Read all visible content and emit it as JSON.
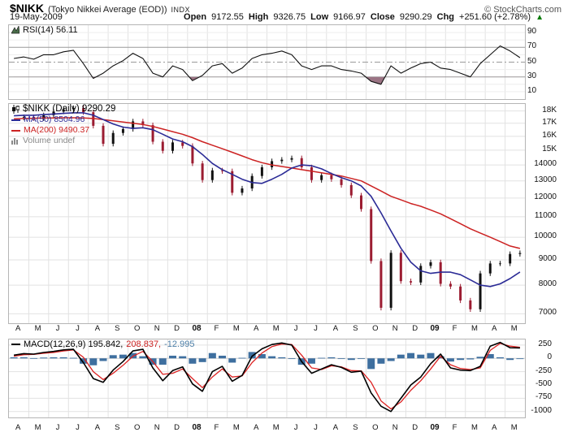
{
  "header": {
    "symbol": "$NIKK",
    "name": "(Tokyo Nikkei Average (EOD))",
    "exchange": "INDX",
    "brand": "© StockCharts.com",
    "date": "19-May-2009",
    "quote": {
      "open_label": "Open",
      "open": "9172.55",
      "high_label": "High",
      "high": "9326.75",
      "low_label": "Low",
      "low": "9166.97",
      "close_label": "Close",
      "close": "9290.29",
      "chg_label": "Chg",
      "chg": "+251.60 (+2.78%)",
      "direction": "▲"
    }
  },
  "rsi_panel": {
    "legend": "RSI(14) 56.11"
  },
  "main_panel": {
    "legend_title": "$NIKK (Daily) 9290.29",
    "legend_ma50": "MA(50) 8504.96",
    "legend_ma200": "MA(200) 9490.37",
    "legend_volume": "Volume undef"
  },
  "macd_panel": {
    "macd_text": "MACD(12,26,9) 195.842,",
    "signal_text": "208.837,",
    "hist_text": "-12.995"
  },
  "months": [
    "A",
    "M",
    "J",
    "J",
    "A",
    "S",
    "O",
    "N",
    "D",
    "08",
    "F",
    "M",
    "A",
    "M",
    "J",
    "J",
    "A",
    "S",
    "O",
    "N",
    "D",
    "09",
    "F",
    "M",
    "A",
    "M"
  ],
  "colors": {
    "up_candle": "#111111",
    "down_candle": "#9b1c31",
    "ma50": "#2b2b96",
    "ma200": "#cc2222",
    "macd_line": "#000000",
    "signal_line": "#dd2222",
    "histogram": "#3e6f9f",
    "rsi_line": "#111111",
    "rsi_oversold_fill": "#9b7484",
    "grid": "#e2e2e2",
    "level_line": "#9a9a9a",
    "chg_up": "#007a00"
  },
  "chart_data": [
    {
      "type": "line",
      "title": "RSI(14)",
      "last_value": 56.11,
      "ylim": [
        0,
        100
      ],
      "axis_ticks": [
        90,
        70,
        50,
        30,
        10
      ],
      "levels": {
        "overbought": 70,
        "mid": 50,
        "oversold": 30
      },
      "x_categories_months": [
        "A",
        "M",
        "J",
        "J",
        "A",
        "S",
        "O",
        "N",
        "D",
        "08",
        "F",
        "M",
        "A",
        "M",
        "J",
        "J",
        "A",
        "S",
        "O",
        "N",
        "D",
        "09",
        "F",
        "M",
        "A",
        "M"
      ],
      "sampling": "2 points per month, Apr-2007 to May-2009",
      "values": [
        55,
        57,
        54,
        60,
        60,
        64,
        66,
        48,
        28,
        35,
        45,
        52,
        62,
        55,
        35,
        30,
        45,
        40,
        25,
        32,
        45,
        48,
        35,
        42,
        55,
        60,
        62,
        65,
        60,
        45,
        40,
        45,
        45,
        40,
        38,
        35,
        24,
        20,
        45,
        35,
        42,
        48,
        50,
        42,
        40,
        35,
        30,
        48,
        60,
        72,
        65,
        56
      ]
    },
    {
      "type": "candlestick",
      "title": "$NIKK Daily close with MA(50) and MA(200)",
      "scale": "log",
      "ylim": [
        6700,
        18600
      ],
      "axis_ticks": [
        {
          "label": "18K",
          "value": 18000
        },
        {
          "label": "17K",
          "value": 17000
        },
        {
          "label": "16K",
          "value": 16000
        },
        {
          "label": "15K",
          "value": 15000
        },
        {
          "label": "14000",
          "value": 14000
        },
        {
          "label": "13000",
          "value": 13000
        },
        {
          "label": "12000",
          "value": 12000
        },
        {
          "label": "11000",
          "value": 11000
        },
        {
          "label": "10000",
          "value": 10000
        },
        {
          "label": "9000",
          "value": 9000
        },
        {
          "label": "8000",
          "value": 8000
        },
        {
          "label": "7000",
          "value": 7000
        }
      ],
      "x_categories_months": [
        "A",
        "M",
        "J",
        "J",
        "A",
        "S",
        "O",
        "N",
        "D",
        "08",
        "F",
        "M",
        "A",
        "M",
        "J",
        "J",
        "A",
        "S",
        "O",
        "N",
        "D",
        "09",
        "F",
        "M",
        "A",
        "M"
      ],
      "sampling": "2 points per month, Apr-2007 to May-2009",
      "series": [
        {
          "name": "$NIKK close",
          "last_value": 9290.29,
          "values": [
            17450,
            17500,
            17400,
            17650,
            17950,
            18150,
            18250,
            17900,
            16800,
            15450,
            16250,
            16550,
            17150,
            16850,
            15600,
            14950,
            15550,
            15300,
            14100,
            13050,
            13650,
            13600,
            12300,
            12550,
            13300,
            13850,
            14250,
            14350,
            14450,
            13850,
            13050,
            13350,
            13100,
            12750,
            12150,
            11400,
            8950,
            7200,
            9300,
            8150,
            8100,
            8750,
            8900,
            8050,
            7950,
            7450,
            7150,
            8450,
            8850,
            8850,
            9250,
            9290
          ]
        },
        {
          "name": "MA(50)",
          "last_value": 8504.96,
          "values": [
            17600,
            17650,
            17650,
            17700,
            17750,
            17800,
            17850,
            17850,
            17650,
            17300,
            16950,
            16700,
            16600,
            16650,
            16500,
            16150,
            15800,
            15600,
            15250,
            14700,
            14100,
            13700,
            13400,
            13100,
            12900,
            12850,
            13100,
            13400,
            13800,
            14000,
            13950,
            13750,
            13450,
            13200,
            13000,
            12700,
            12100,
            11200,
            10300,
            9500,
            8900,
            8550,
            8450,
            8500,
            8500,
            8400,
            8200,
            8000,
            7950,
            8050,
            8250,
            8505
          ]
        },
        {
          "name": "MA(200)",
          "last_value": 9490.37,
          "values": [
            17350,
            17380,
            17400,
            17420,
            17430,
            17440,
            17440,
            17430,
            17380,
            17300,
            17200,
            17100,
            17000,
            16900,
            16750,
            16550,
            16350,
            16150,
            15900,
            15600,
            15350,
            15100,
            14850,
            14600,
            14350,
            14150,
            14000,
            13900,
            13800,
            13700,
            13600,
            13500,
            13400,
            13300,
            13150,
            13000,
            12700,
            12400,
            12100,
            11900,
            11700,
            11550,
            11350,
            11150,
            10900,
            10650,
            10400,
            10200,
            10000,
            9800,
            9600,
            9490
          ]
        }
      ]
    },
    {
      "type": "line+histogram",
      "title": "MACD(12,26,9)",
      "ylim": [
        -1111,
        355
      ],
      "axis_ticks": [
        250,
        0,
        -250,
        -500,
        -750,
        -1000
      ],
      "x_categories_months": [
        "A",
        "M",
        "J",
        "J",
        "A",
        "S",
        "O",
        "N",
        "D",
        "08",
        "F",
        "M",
        "A",
        "M",
        "J",
        "J",
        "A",
        "S",
        "O",
        "N",
        "D",
        "09",
        "F",
        "M",
        "A",
        "M"
      ],
      "sampling": "2 points per month, Apr-2007 to May-2009",
      "histogram_rule": "MACD minus Signal",
      "series": [
        {
          "name": "MACD",
          "last_value": 195.842,
          "values": [
            60,
            90,
            80,
            110,
            130,
            160,
            170,
            -80,
            -380,
            -450,
            -220,
            -60,
            140,
            170,
            -180,
            -420,
            -230,
            -160,
            -480,
            -620,
            -250,
            -150,
            -430,
            -320,
            40,
            180,
            260,
            290,
            250,
            -60,
            -280,
            -200,
            -120,
            -170,
            -260,
            -240,
            -650,
            -900,
            -1000,
            -750,
            -500,
            -350,
            -100,
            80,
            -180,
            -220,
            -230,
            -150,
            230,
            300,
            200,
            196
          ],
          "final_histogram": -12.995
        },
        {
          "name": "Signal",
          "last_value": 208.837,
          "values": [
            40,
            70,
            75,
            95,
            110,
            140,
            160,
            20,
            -250,
            -400,
            -280,
            -130,
            40,
            130,
            -60,
            -300,
            -280,
            -200,
            -380,
            -550,
            -350,
            -200,
            -350,
            -330,
            -80,
            100,
            220,
            270,
            260,
            60,
            -180,
            -210,
            -140,
            -160,
            -230,
            -235,
            -450,
            -800,
            -950,
            -820,
            -600,
            -420,
            -200,
            40,
            -120,
            -190,
            -210,
            -180,
            150,
            280,
            230,
            209
          ]
        }
      ]
    }
  ]
}
